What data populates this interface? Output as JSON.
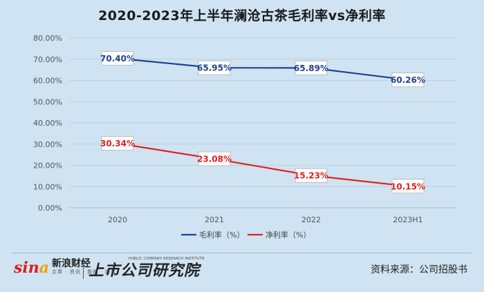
{
  "chart_data": {
    "type": "line",
    "title": "2020-2023年上半年澜沧古茶毛利率vs净利率",
    "categories": [
      "2020",
      "2021",
      "2022",
      "2023H1"
    ],
    "series": [
      {
        "name": "毛利率（%）",
        "color": "#1f3f8f",
        "values": [
          70.4,
          65.95,
          65.89,
          60.26
        ],
        "labels": [
          "70.40%",
          "65.95%",
          "65.89%",
          "60.26%"
        ]
      },
      {
        "name": "净利率（%）",
        "color": "#e02020",
        "values": [
          30.34,
          23.08,
          15.23,
          10.15
        ],
        "labels": [
          "30.34%",
          "23.08%",
          "15.23%",
          "10.15%"
        ]
      }
    ],
    "ylim": [
      0,
      80
    ],
    "yticks": [
      "0.00%",
      "10.00%",
      "20.00%",
      "30.00%",
      "40.00%",
      "50.00%",
      "60.00%",
      "70.00%",
      "80.00%"
    ],
    "grid": true,
    "legend_position": "bottom"
  },
  "footer": {
    "sina_mark": "sin",
    "sina_eye": "a",
    "sina_name": "新浪财经",
    "sina_sub": "文章 · 资讯 · 数据 · 服务",
    "research_en": "PUBLIC COMPANY RESEARCH INSTITUTE",
    "research_logo": "上市公司研究院",
    "source": "资料来源：公司招股书"
  }
}
